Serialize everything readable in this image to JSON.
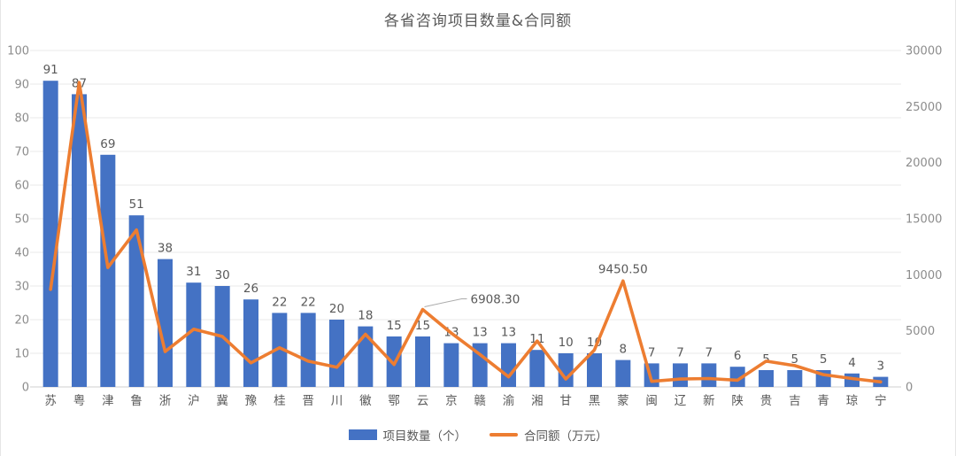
{
  "chart_data": {
    "type": "bar",
    "title": "各省咨询项目数量&合同额",
    "categories": [
      "苏",
      "粤",
      "津",
      "鲁",
      "浙",
      "沪",
      "冀",
      "豫",
      "桂",
      "晋",
      "川",
      "徽",
      "鄂",
      "云",
      "京",
      "赣",
      "渝",
      "湘",
      "甘",
      "黑",
      "蒙",
      "闽",
      "辽",
      "新",
      "陕",
      "贵",
      "吉",
      "青",
      "琼",
      "宁"
    ],
    "series": [
      {
        "name": "项目数量（个）",
        "type": "bar",
        "axis": "left",
        "values": [
          91,
          87,
          69,
          51,
          38,
          31,
          30,
          26,
          22,
          22,
          20,
          18,
          15,
          15,
          13,
          13,
          13,
          11,
          10,
          10,
          8,
          7,
          7,
          7,
          6,
          5,
          5,
          5,
          4,
          3
        ],
        "labels_shown": true
      },
      {
        "name": "合同额（万元）",
        "type": "line",
        "axis": "right",
        "values": [
          8700,
          27150,
          10650,
          14000,
          3150,
          5150,
          4500,
          2150,
          3500,
          2300,
          1750,
          4700,
          2000,
          6908.3,
          4800,
          2900,
          900,
          4100,
          700,
          3300,
          9450.5,
          500,
          700,
          750,
          600,
          2300,
          1900,
          1100,
          750,
          450
        ],
        "labels_shown": false
      }
    ],
    "annotations": [
      {
        "series": 1,
        "index": 13,
        "text": "6908.30",
        "style": "callout-right"
      },
      {
        "series": 1,
        "index": 20,
        "text": "9450.50",
        "style": "above"
      }
    ],
    "axes": {
      "left": {
        "min": 0,
        "max": 100,
        "step": 10,
        "tick_labels": [
          "0",
          "10",
          "20",
          "30",
          "40",
          "50",
          "60",
          "70",
          "80",
          "90",
          "100"
        ]
      },
      "right": {
        "min": 0,
        "max": 30000,
        "step": 5000,
        "tick_labels": [
          "0",
          "5000",
          "10000",
          "15000",
          "20000",
          "25000",
          "30000"
        ]
      }
    },
    "layout_hints": {
      "grid": "horizontal",
      "legend_position": "bottom"
    },
    "colors": {
      "bar": "#4472C4",
      "line": "#ED7D31",
      "title_text": "#595959",
      "value_label_text": "#595959",
      "axis_tick_text": "#8C8C8C",
      "category_text": "#595959",
      "gridline": "#E8E8E8",
      "axis_line": "#CFCFCF",
      "annotation_text": "#595959",
      "annotation_leader": "#ABABAB"
    }
  }
}
